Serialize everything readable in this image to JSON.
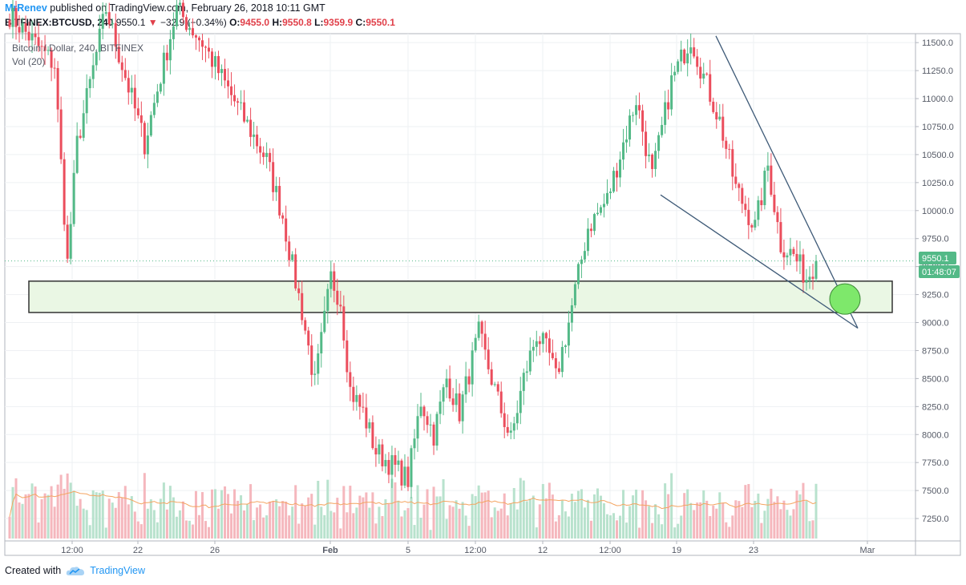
{
  "header": {
    "user": "MrRenev",
    "published_text": "published on TradingView.com, February 26, 2018 10:11 GMT"
  },
  "ticker": {
    "symbol": "BITFINEX:BTCUSD, 240",
    "last": "9550.1",
    "down_arrow": "▼",
    "change": "−32.9 (−0.34%)",
    "open_label": "O:",
    "open": "9455.0",
    "high_label": "H:",
    "high": "9550.8",
    "low_label": "L:",
    "low": "9359.9",
    "close_label": "C:",
    "close": "9550.1"
  },
  "legend": {
    "line1": "Bitcoin / Dollar, 240, BITFINEX",
    "line2": "Vol (20)"
  },
  "price_tags": {
    "last": "9550.1",
    "countdown": "01:48:07"
  },
  "footer": {
    "created_with": "Created with",
    "brand": "TradingView"
  },
  "colors": {
    "up": "#53b987",
    "down": "#eb4d5c",
    "up_vol": "#b8e2cd",
    "down_vol": "#f5b7bd",
    "ma": "#f4a460",
    "trendline": "#3e5a77",
    "support_zone": "#eaf7e4",
    "target_circle": "#7ee86b",
    "last_price_tag": "#53b987",
    "countdown_tag": "#53b987"
  },
  "chart_data": {
    "type": "candlestick",
    "title": "Bitcoin / Dollar, 240, BITFINEX",
    "y_axis": {
      "min": 7050,
      "max": 11580,
      "ticks": [
        "11500.0",
        "11250.0",
        "11000.0",
        "10750.0",
        "10500.0",
        "10250.0",
        "10000.0",
        "9750.0",
        "9500.0",
        "9250.0",
        "9000.0",
        "8750.0",
        "8500.0",
        "8250.0",
        "8000.0",
        "7750.0",
        "7500.0",
        "7250.0"
      ]
    },
    "x_axis": {
      "tick_labels": [
        "12:00",
        "22",
        "26",
        "Feb",
        "5",
        "12:00",
        "12",
        "12:00",
        "19",
        "23",
        "Mar"
      ]
    },
    "price_path": [
      [
        0,
        11750
      ],
      [
        14,
        11300
      ],
      [
        18,
        9530
      ],
      [
        21,
        10600
      ],
      [
        30,
        11800
      ],
      [
        42,
        10600
      ],
      [
        52,
        11800
      ],
      [
        60,
        11500
      ],
      [
        80,
        10450
      ],
      [
        85,
        9950
      ],
      [
        88,
        9500
      ],
      [
        91,
        9100
      ],
      [
        95,
        8450
      ],
      [
        100,
        9400
      ],
      [
        103,
        9200
      ],
      [
        106,
        8400
      ],
      [
        110,
        8200
      ],
      [
        114,
        7850
      ],
      [
        120,
        7700
      ],
      [
        124,
        7600
      ],
      [
        128,
        8300
      ],
      [
        132,
        8000
      ],
      [
        136,
        8500
      ],
      [
        140,
        8200
      ],
      [
        146,
        8900
      ],
      [
        152,
        8300
      ],
      [
        156,
        7950
      ],
      [
        160,
        8500
      ],
      [
        164,
        8900
      ],
      [
        168,
        8700
      ],
      [
        170,
        8500
      ],
      [
        174,
        9000
      ],
      [
        180,
        9850
      ],
      [
        186,
        10100
      ],
      [
        190,
        10500
      ],
      [
        195,
        11000
      ],
      [
        200,
        10300
      ],
      [
        206,
        11150
      ],
      [
        212,
        11550
      ],
      [
        216,
        11200
      ],
      [
        221,
        10800
      ],
      [
        226,
        10200
      ],
      [
        232,
        9850
      ],
      [
        236,
        10400
      ],
      [
        240,
        9700
      ],
      [
        244,
        9600
      ],
      [
        248,
        9400
      ],
      [
        251,
        9550
      ]
    ],
    "volume_note": "Volume bars with 20-period moving average (Vol 20)",
    "last_price": 9550.1,
    "annotations": {
      "support_zone": [
        9090,
        9370
      ],
      "descending_upper_line": "from ~11560 near Feb 20 down to ~8950 after Feb 26",
      "lower_line": "from ~10140 near Feb 18 down to ~8950 after Feb 26",
      "target_circle_price": 9210
    }
  }
}
